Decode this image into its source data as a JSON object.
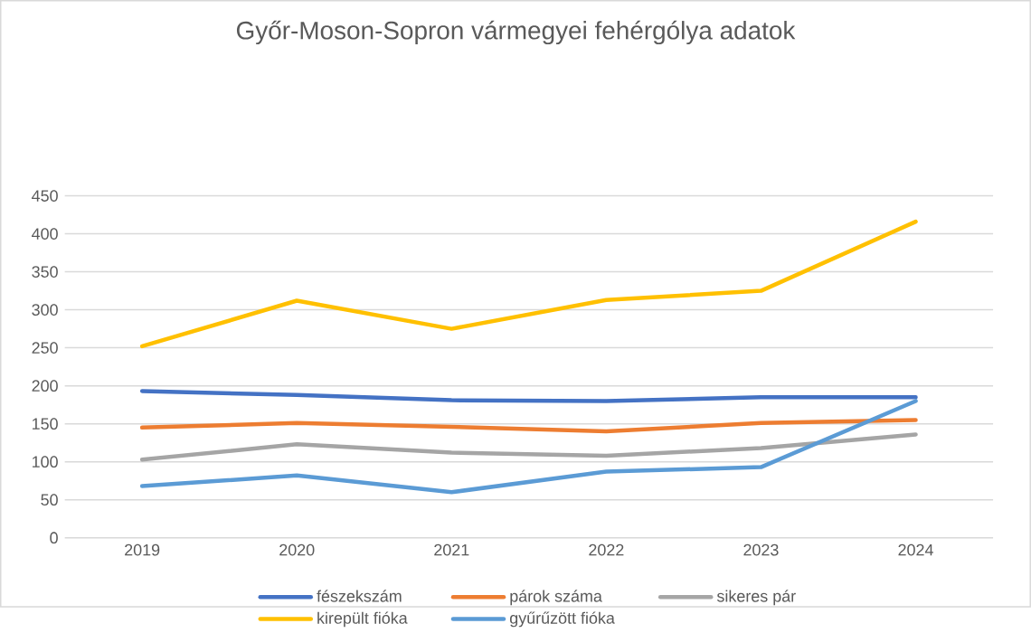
{
  "chart_data": {
    "type": "line",
    "title": "Győr-Moson-Sopron vármegyei fehérgólya adatok",
    "categories": [
      "2019",
      "2020",
      "2021",
      "2022",
      "2023",
      "2024"
    ],
    "series": [
      {
        "name": "fészekszám",
        "color": "#4472c4",
        "values": [
          193,
          188,
          181,
          180,
          185,
          185
        ]
      },
      {
        "name": "párok száma",
        "color": "#ed7d31",
        "values": [
          145,
          151,
          146,
          140,
          151,
          155
        ]
      },
      {
        "name": "sikeres pár",
        "color": "#a5a5a5",
        "values": [
          103,
          123,
          112,
          108,
          118,
          136
        ]
      },
      {
        "name": "kirepült fióka",
        "color": "#ffc000",
        "values": [
          252,
          312,
          275,
          313,
          325,
          416
        ]
      },
      {
        "name": "gyűrűzött fióka",
        "color": "#5b9bd5",
        "values": [
          68,
          82,
          60,
          87,
          93,
          180
        ]
      }
    ],
    "ylim": [
      0,
      450
    ],
    "yticks": [
      0,
      50,
      100,
      150,
      200,
      250,
      300,
      350,
      400,
      450
    ],
    "grid": "y",
    "legend": "bottom",
    "marker": "none",
    "line_style": "solid"
  }
}
